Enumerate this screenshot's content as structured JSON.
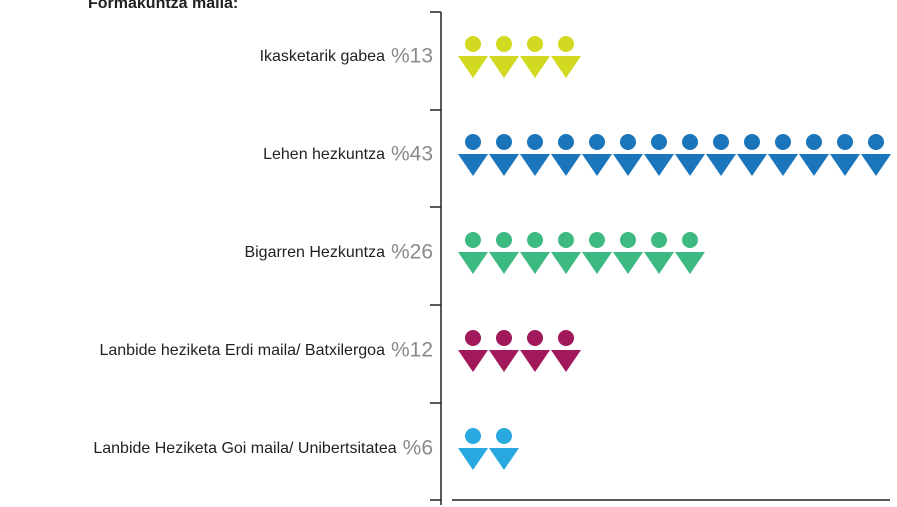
{
  "chart_data": {
    "type": "pictogram",
    "title": "Formakuntza maila:",
    "categories": [
      "Ikasketarik gabea",
      "Lehen hezkuntza",
      "Bigarren Hezkuntza",
      "Lanbide heziketa Erdi maila/ Batxilergoa",
      "Lanbide Heziketa Goi maila/ Unibertsitatea"
    ],
    "values": [
      13,
      43,
      26,
      12,
      6
    ],
    "value_labels": [
      "%13",
      "%43",
      "%26",
      "%12",
      "%6"
    ],
    "colors": [
      "#d2d921",
      "#1b75bb",
      "#3cba82",
      "#a1195b",
      "#29a9e0"
    ]
  }
}
